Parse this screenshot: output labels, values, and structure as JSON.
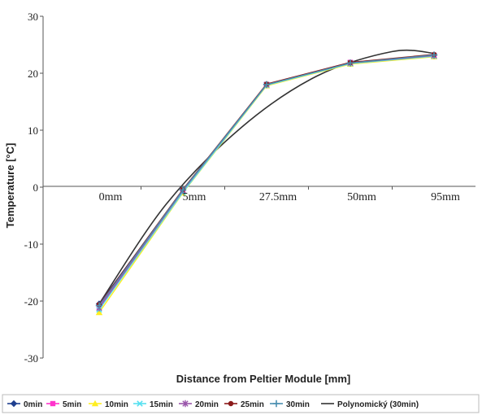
{
  "chart_data": {
    "type": "line",
    "categories": [
      "0mm",
      "5mm",
      "27.5mm",
      "50mm",
      "95mm"
    ],
    "ylim": [
      -30,
      30
    ],
    "yticks": [
      "30",
      "20",
      "10",
      "0",
      "-10",
      "-20",
      "-30"
    ],
    "xlabel": "Distance from Peltier Module [mm]",
    "ylabel": "Temperature [°C]",
    "legend_position": "bottom",
    "series": [
      {
        "name": "0min",
        "color": "#1f3f8f",
        "marker": "diamond",
        "values": [
          -20.5,
          -0.5,
          18.0,
          21.8,
          23.2
        ]
      },
      {
        "name": "5min",
        "color": "#ff33cc",
        "marker": "square",
        "values": [
          -21.0,
          -0.7,
          18.0,
          21.9,
          23.1
        ]
      },
      {
        "name": "10min",
        "color": "#ffee22",
        "marker": "triangle",
        "values": [
          -22.0,
          -1.0,
          17.8,
          21.6,
          22.9
        ]
      },
      {
        "name": "15min",
        "color": "#55e0f0",
        "marker": "x",
        "values": [
          -21.5,
          -0.9,
          17.9,
          21.7,
          23.0
        ]
      },
      {
        "name": "20min",
        "color": "#9955aa",
        "marker": "star",
        "values": [
          -21.2,
          -0.6,
          18.0,
          21.8,
          23.1
        ]
      },
      {
        "name": "25min",
        "color": "#8b1a1a",
        "marker": "circle",
        "values": [
          -20.6,
          -0.4,
          18.1,
          21.9,
          23.3
        ]
      },
      {
        "name": "30min",
        "color": "#4a8fb0",
        "marker": "plus",
        "values": [
          -20.8,
          -0.5,
          18.0,
          21.8,
          23.2
        ]
      }
    ],
    "trendline": {
      "name": "Polynomický (30min)",
      "color": "#333333",
      "values": [
        -20.5,
        2.5,
        16.5,
        22.8,
        23.5
      ],
      "control_x": [
        0,
        0.8,
        1.7,
        2.6,
        3.5,
        4.0
      ],
      "control_y": [
        -20.5,
        -3.0,
        10.5,
        19.5,
        23.8,
        23.5
      ]
    }
  }
}
